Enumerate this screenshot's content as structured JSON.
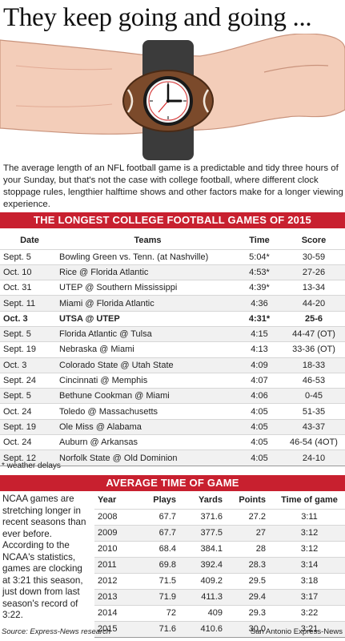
{
  "headline": "They keep going and going ...",
  "watch": {
    "face_icon": "football-watch-icon",
    "hour_hand": 3,
    "minute_hand": 0
  },
  "intro": "The average length of an NFL football game is a predictable and tidy three hours of your Sunday, but that's not the case with college football, where different clock stoppage rules, lengthier halftime shows and other factors make for a longer viewing experience.",
  "longest": {
    "title": "The longest college football games of 2015",
    "headers": [
      "Date",
      "Teams",
      "Time",
      "Score"
    ],
    "rows": [
      {
        "date": "Sept. 5",
        "teams": "Bowling Green vs. Tenn. (at Nashville)",
        "time": "5:04*",
        "score": "30-59"
      },
      {
        "date": "Oct. 10",
        "teams": "Rice @ Florida Atlantic",
        "time": "4:53*",
        "score": "27-26"
      },
      {
        "date": "Oct. 31",
        "teams": "UTEP @ Southern Mississippi",
        "time": "4:39*",
        "score": "13-34"
      },
      {
        "date": "Sept. 11",
        "teams": "Miami @ Florida Atlantic",
        "time": "4:36",
        "score": "44-20"
      },
      {
        "date": "Oct. 3",
        "teams": "UTSA @ UTEP",
        "time": "4:31*",
        "score": "25-6",
        "bold": true
      },
      {
        "date": "Sept. 5",
        "teams": "Florida Atlantic @ Tulsa",
        "time": "4:15",
        "score": "44-47 (OT)"
      },
      {
        "date": "Sept. 19",
        "teams": "Nebraska @ Miami",
        "time": "4:13",
        "score": "33-36 (OT)"
      },
      {
        "date": "Oct. 3",
        "teams": "Colorado State @ Utah State",
        "time": "4:09",
        "score": "18-33"
      },
      {
        "date": "Sept. 24",
        "teams": "Cincinnati @ Memphis",
        "time": "4:07",
        "score": "46-53"
      },
      {
        "date": "Sept. 5",
        "teams": "Bethune Cookman @ Miami",
        "time": "4:06",
        "score": "0-45"
      },
      {
        "date": "Oct. 24",
        "teams": "Toledo @ Massachusetts",
        "time": "4:05",
        "score": "51-35"
      },
      {
        "date": "Sept. 19",
        "teams": "Ole Miss @ Alabama",
        "time": "4:05",
        "score": "43-37"
      },
      {
        "date": "Oct. 24",
        "teams": "Auburn @ Arkansas",
        "time": "4:05",
        "score": "46-54 (4OT)"
      },
      {
        "date": "Sept. 12",
        "teams": "Norfolk State @ Old Dominion",
        "time": "4:05",
        "score": "24-10"
      }
    ],
    "footnote": "* weather delays"
  },
  "average": {
    "title": "Average time of game",
    "side_text": "NCAA games are stretching longer in recent seasons than ever before. According to the NCAA's statistics, games are clocking at 3:21 this season, just down from last season's record of 3:22.",
    "headers": [
      "Year",
      "Plays",
      "Yards",
      "Points",
      "Time of game"
    ],
    "rows": [
      {
        "year": "2008",
        "plays": "67.7",
        "yards": "371.6",
        "points": "27.2",
        "time": "3:11"
      },
      {
        "year": "2009",
        "plays": "67.7",
        "yards": "377.5",
        "points": "27",
        "time": "3:12"
      },
      {
        "year": "2010",
        "plays": "68.4",
        "yards": "384.1",
        "points": "28",
        "time": "3:12"
      },
      {
        "year": "2011",
        "plays": "69.8",
        "yards": "392.4",
        "points": "28.3",
        "time": "3:14"
      },
      {
        "year": "2012",
        "plays": "71.5",
        "yards": "409.2",
        "points": "29.5",
        "time": "3:18"
      },
      {
        "year": "2013",
        "plays": "71.9",
        "yards": "411.3",
        "points": "29.4",
        "time": "3:17"
      },
      {
        "year": "2014",
        "plays": "72",
        "yards": "409",
        "points": "29.3",
        "time": "3:22"
      },
      {
        "year": "2015",
        "plays": "71.6",
        "yards": "410.6",
        "points": "30.0",
        "time": "3:21"
      }
    ]
  },
  "source": "Source: Express-News research",
  "credit": "San Antonio Express-News",
  "colors": {
    "accent": "#c8202f",
    "football": "#7a4a2c",
    "skin": "#f2c9b4",
    "band": "#3a3a3a"
  }
}
